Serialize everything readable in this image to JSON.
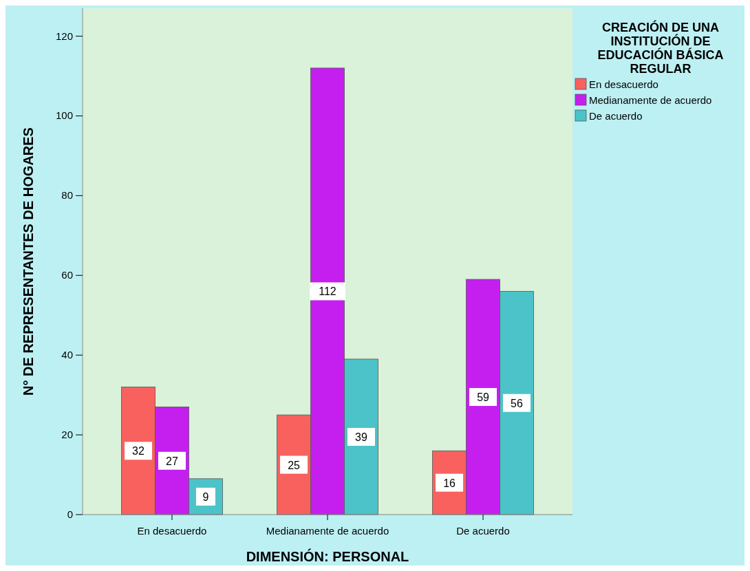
{
  "chart_data": {
    "type": "bar",
    "xlabel": "DIMENSIÓN: PERSONAL",
    "ylabel": "N° DE REPRESENTANTES DE HOGARES",
    "legend_title": "CREACIÓN DE UNA INSTITUCIÓN DE EDUCACIÓN BÁSICA REGULAR",
    "categories": [
      "En desacuerdo",
      "Medianamente de acuerdo",
      "De acuerdo"
    ],
    "series": [
      {
        "name": "En desacuerdo",
        "color": "#f8615e",
        "values": [
          32,
          25,
          16
        ]
      },
      {
        "name": "Medianamente de acuerdo",
        "color": "#c51ff0",
        "values": [
          27,
          112,
          59
        ]
      },
      {
        "name": "De acuerdo",
        "color": "#4cc3c8",
        "values": [
          9,
          39,
          56
        ]
      }
    ],
    "ylim": [
      0,
      127
    ],
    "yticks": [
      0,
      20,
      40,
      60,
      80,
      100,
      120
    ],
    "data_labels": true,
    "legend": "right",
    "grid": false
  }
}
